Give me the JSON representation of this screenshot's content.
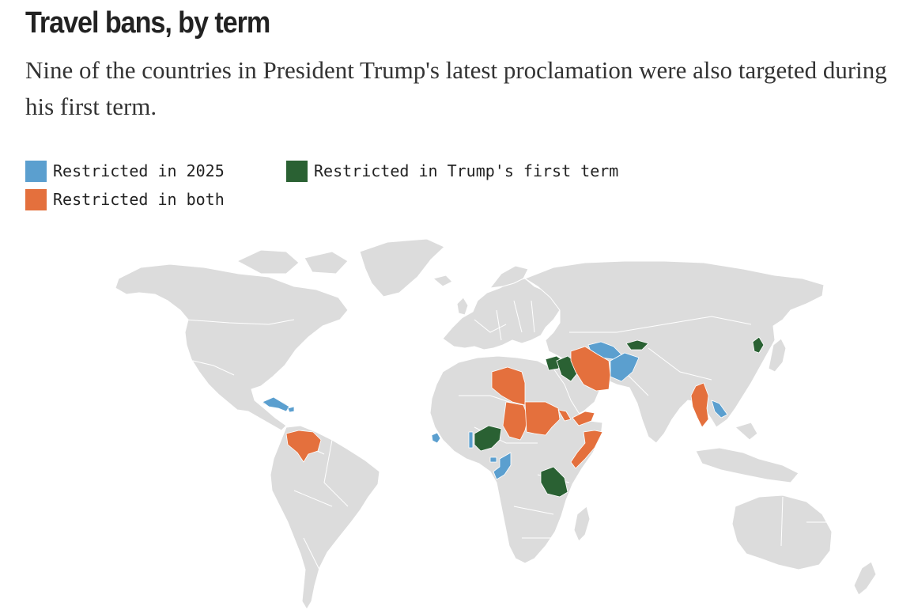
{
  "title": "Travel bans, by term",
  "subtitle": "Nine of the countries in President Trump's latest proclamation were also targeted during his first term.",
  "colors": {
    "land": "#dcdcdc",
    "restricted_2025": "#5b9fcf",
    "restricted_first_term": "#2a6133",
    "restricted_both": "#e4703d"
  },
  "legend": [
    {
      "key": "restricted_2025",
      "label": "Restricted in 2025"
    },
    {
      "key": "restricted_first_term",
      "label": "Restricted in Trump's first term"
    },
    {
      "key": "restricted_both",
      "label": "Restricted in both"
    }
  ],
  "countries": {
    "restricted_2025": [
      "Cuba",
      "Haiti",
      "Sierra Leone",
      "Togo",
      "Equatorial Guinea",
      "Republic of the Congo",
      "Afghanistan",
      "Turkmenistan",
      "Laos"
    ],
    "restricted_first_term": [
      "Syria",
      "Iraq",
      "Kyrgyzstan",
      "North Korea",
      "Nigeria",
      "Tanzania"
    ],
    "restricted_both": [
      "Venezuela",
      "Libya",
      "Chad",
      "Sudan",
      "Yemen",
      "Eritrea",
      "Somalia",
      "Iran",
      "Myanmar"
    ]
  }
}
